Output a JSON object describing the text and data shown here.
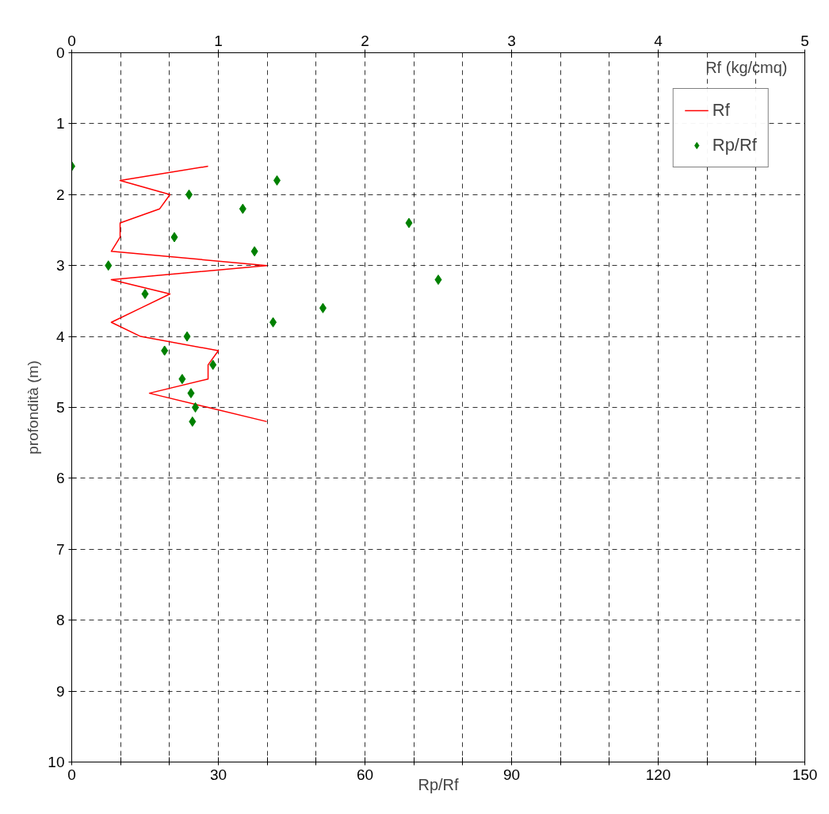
{
  "chart_data": {
    "type": "scatter",
    "xlabel": "Rp/Rf",
    "x2label": "Rf (kg/cmq)",
    "ylabel": "profondità (m)",
    "xlim": [
      0,
      150
    ],
    "xticks": [
      0,
      {
        "value": 10,
        "label": null
      },
      {
        "value": 20,
        "label": null
      },
      30,
      {
        "value": 40,
        "label": null
      },
      {
        "value": 50,
        "label": null
      },
      60,
      {
        "value": 70,
        "label": null
      },
      {
        "value": 80,
        "label": null
      },
      90,
      {
        "value": 100,
        "label": null
      },
      {
        "value": 110,
        "label": null
      },
      120,
      {
        "value": 130,
        "label": null
      },
      {
        "value": 140,
        "label": null
      },
      150
    ],
    "x2lim": [
      0,
      5
    ],
    "x2ticks": [
      0,
      1,
      2,
      3,
      4,
      5
    ],
    "ylim": [
      10,
      0
    ],
    "yticks": [
      0,
      1,
      2,
      3,
      4,
      5,
      6,
      7,
      8,
      9,
      10
    ],
    "grid": true,
    "legend": "top right",
    "series": [
      {
        "name": "Rf",
        "type": "line",
        "axis": "x2",
        "color": "#ff0000",
        "marker": "none",
        "line_style": "solid",
        "x": [
          0.93,
          0.33,
          0.67,
          0.6,
          0.33,
          0.33,
          0.27,
          1.33,
          0.27,
          0.67,
          0.47,
          0.27,
          0.47,
          1.0,
          0.93,
          0.93,
          0.53,
          0.93,
          1.33
        ],
        "values": [
          1.6,
          1.8,
          2.0,
          2.2,
          2.4,
          2.6,
          2.8,
          3.0,
          3.2,
          3.4,
          3.6,
          3.8,
          4.0,
          4.2,
          4.4,
          4.6,
          4.8,
          5.0,
          5.2
        ]
      },
      {
        "name": "Rp/Rf",
        "color": "#008000",
        "marker": "diamond",
        "x": [
          0,
          42,
          24,
          35,
          69,
          21,
          37.4,
          7.5,
          75,
          15,
          51.4,
          41.2,
          23.6,
          19,
          28.9,
          22.6,
          24.4,
          25.3,
          24.7
        ],
        "values": [
          1.6,
          1.8,
          2.0,
          2.2,
          2.4,
          2.6,
          2.8,
          3.0,
          3.2,
          3.4,
          3.6,
          3.8,
          4.0,
          4.2,
          4.4,
          4.6,
          4.8,
          5.0,
          5.2
        ]
      }
    ]
  }
}
